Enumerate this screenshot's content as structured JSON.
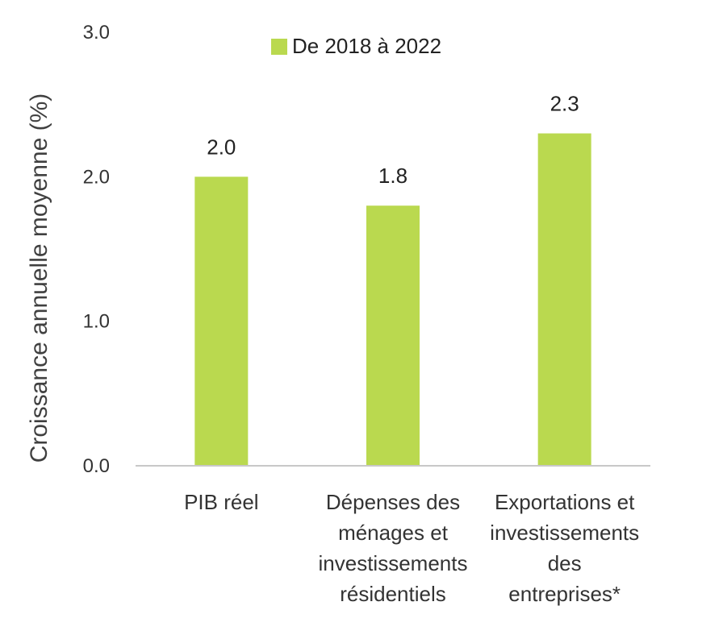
{
  "chart_data": {
    "type": "bar",
    "categories": [
      [
        "PIB réel"
      ],
      [
        "Dépenses des",
        "ménages et",
        "investissements",
        "résidentiels"
      ],
      [
        "Exportations et",
        "investissements",
        "des",
        "entreprises*"
      ]
    ],
    "series": [
      {
        "name": "De 2018 à 2022",
        "values": [
          2.0,
          1.8,
          2.3
        ],
        "value_labels": [
          "2.0",
          "1.8",
          "2.3"
        ],
        "color": "#bad94f"
      }
    ],
    "title": "",
    "xlabel": "",
    "ylabel": "Croissance annuelle moyenne (%)",
    "ylim": [
      0,
      3.0
    ],
    "yticks": [
      0.0,
      1.0,
      2.0,
      3.0
    ],
    "ytick_labels": [
      "0.0",
      "1.0",
      "2.0",
      "3.0"
    ],
    "grid": false,
    "legend_position": "top-center",
    "axis_color": "#c8c8c8"
  }
}
